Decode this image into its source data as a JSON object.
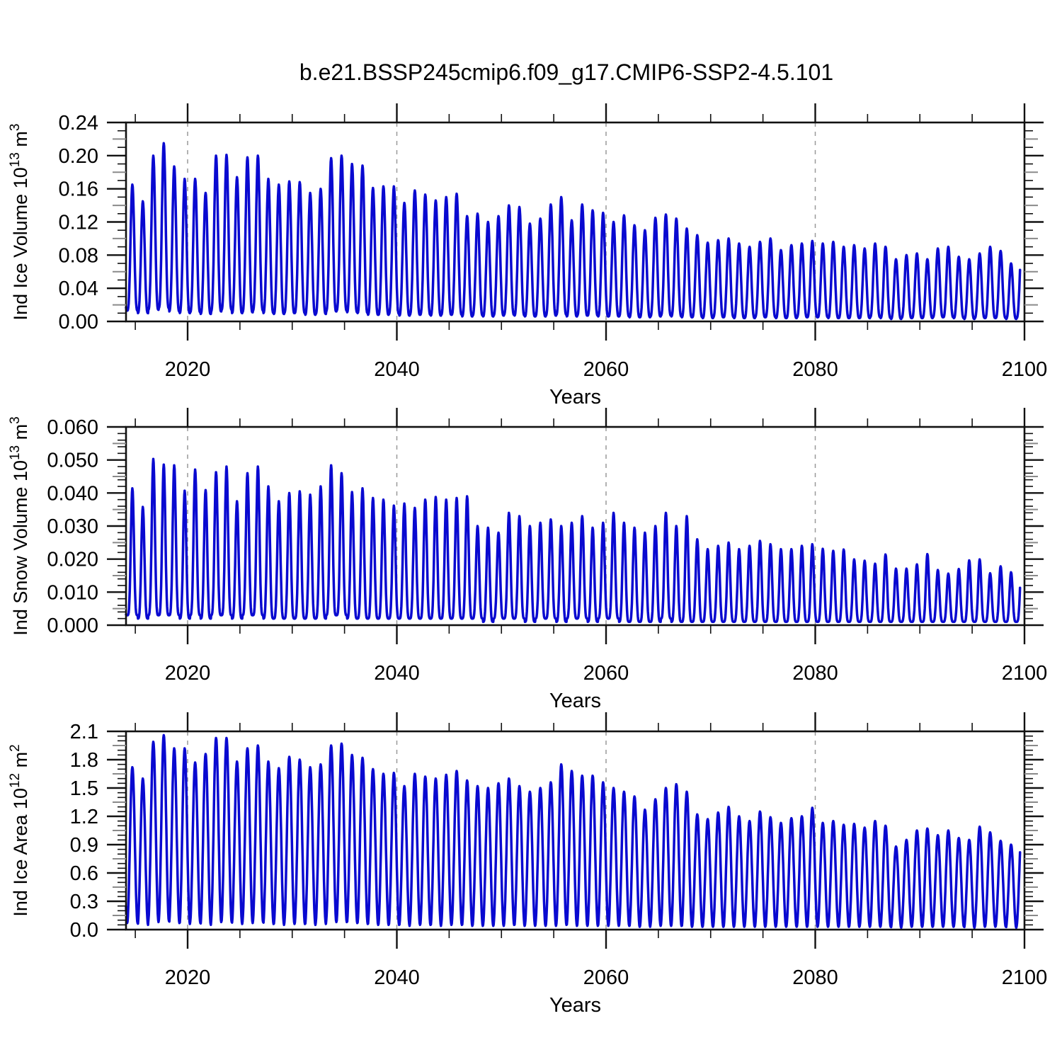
{
  "title": "b.e21.BSSP245cmip6.f09_g17.CMIP6-SSP2-4.5.101",
  "style": {
    "line_color": "#0909D0",
    "axis_color": "#111111",
    "grid_color": "#999999",
    "mid_tick_color": "#8A8A8A"
  },
  "x_axis": {
    "label": "Years",
    "ticks": [
      2020,
      2040,
      2060,
      2080,
      2100
    ],
    "minor_step": 5,
    "gridlines": [
      2020,
      2040,
      2060,
      2080
    ],
    "axis_start_year": 2014.11,
    "axis_end_year": 2100,
    "data_start_year": 2014.11,
    "data_end_year": 2099.58
  },
  "seasonal_model": {
    "peak_phase_of_year": 0.72,
    "samples_per_year": 28
  },
  "chart_data": [
    {
      "type": "line",
      "name": "ice-volume",
      "xlabel": "Years",
      "ylabel": "Ind Ice Volume 10^13 m^3",
      "ylabel_segments": [
        {
          "t": "Ind Ice Volume 10",
          "sup": false
        },
        {
          "t": "13",
          "sup": true
        },
        {
          "t": " m",
          "sup": false
        },
        {
          "t": "3",
          "sup": true
        }
      ],
      "ylim": [
        0,
        0.24
      ],
      "ytick_major_step": 0.04,
      "ytick_mid_step": 0.02,
      "ytick_minor_step": 0.01,
      "ytick_decimals": 2,
      "peak_sharpness": 1.7,
      "year_start": 2014,
      "annual_max": [
        0.165,
        0.145,
        0.2,
        0.215,
        0.187,
        0.172,
        0.172,
        0.155,
        0.2,
        0.201,
        0.174,
        0.198,
        0.2,
        0.172,
        0.165,
        0.169,
        0.168,
        0.155,
        0.16,
        0.197,
        0.2,
        0.19,
        0.188,
        0.161,
        0.163,
        0.163,
        0.143,
        0.158,
        0.153,
        0.146,
        0.15,
        0.154,
        0.127,
        0.13,
        0.12,
        0.127,
        0.14,
        0.138,
        0.118,
        0.124,
        0.141,
        0.15,
        0.122,
        0.141,
        0.134,
        0.131,
        0.12,
        0.128,
        0.116,
        0.11,
        0.125,
        0.129,
        0.124,
        0.112,
        0.104,
        0.095,
        0.098,
        0.1,
        0.094,
        0.09,
        0.096,
        0.1,
        0.086,
        0.092,
        0.094,
        0.097,
        0.094,
        0.096,
        0.09,
        0.092,
        0.088,
        0.094,
        0.09,
        0.075,
        0.08,
        0.082,
        0.075,
        0.088,
        0.09,
        0.078,
        0.075,
        0.082,
        0.09,
        0.085,
        0.07,
        0.088
      ],
      "annual_min": [
        0.013,
        0.01,
        0.014,
        0.016,
        0.012,
        0.01,
        0.011,
        0.009,
        0.012,
        0.014,
        0.01,
        0.011,
        0.013,
        0.01,
        0.009,
        0.01,
        0.01,
        0.008,
        0.009,
        0.012,
        0.013,
        0.011,
        0.01,
        0.008,
        0.008,
        0.009,
        0.007,
        0.008,
        0.008,
        0.007,
        0.008,
        0.008,
        0.006,
        0.007,
        0.006,
        0.007,
        0.008,
        0.007,
        0.006,
        0.006,
        0.007,
        0.008,
        0.006,
        0.007,
        0.007,
        0.006,
        0.006,
        0.006,
        0.005,
        0.005,
        0.006,
        0.007,
        0.006,
        0.005,
        0.005,
        0.004,
        0.005,
        0.005,
        0.004,
        0.004,
        0.005,
        0.005,
        0.004,
        0.004,
        0.005,
        0.005,
        0.005,
        0.004,
        0.004,
        0.004,
        0.004,
        0.005,
        0.004,
        0.003,
        0.004,
        0.004,
        0.004,
        0.005,
        0.005,
        0.004,
        0.003,
        0.004,
        0.004,
        0.004,
        0.003,
        0.004
      ]
    },
    {
      "type": "line",
      "name": "snow-volume",
      "xlabel": "Years",
      "ylabel": "Ind Snow Volume 10^13 m^3",
      "ylabel_segments": [
        {
          "t": "Ind Snow Volume 10",
          "sup": false
        },
        {
          "t": "13",
          "sup": true
        },
        {
          "t": " m",
          "sup": false
        },
        {
          "t": "3",
          "sup": true
        }
      ],
      "ylim": [
        0,
        0.06
      ],
      "ytick_major_step": 0.01,
      "ytick_mid_step": 0.005,
      "ytick_minor_step": 0.002,
      "ytick_decimals": 3,
      "peak_sharpness": 2.3,
      "year_start": 2014,
      "annual_max": [
        0.0414,
        0.0358,
        0.0503,
        0.0486,
        0.0484,
        0.0407,
        0.0471,
        0.0409,
        0.0463,
        0.048,
        0.0375,
        0.046,
        0.048,
        0.042,
        0.0375,
        0.04,
        0.0405,
        0.0395,
        0.042,
        0.0484,
        0.046,
        0.0403,
        0.0414,
        0.0385,
        0.038,
        0.0362,
        0.0368,
        0.0355,
        0.038,
        0.0388,
        0.038,
        0.0385,
        0.039,
        0.03,
        0.0295,
        0.028,
        0.034,
        0.033,
        0.03,
        0.031,
        0.032,
        0.03,
        0.031,
        0.033,
        0.0295,
        0.031,
        0.034,
        0.031,
        0.0295,
        0.028,
        0.03,
        0.034,
        0.03,
        0.033,
        0.026,
        0.023,
        0.024,
        0.025,
        0.023,
        0.024,
        0.0255,
        0.0245,
        0.023,
        0.023,
        0.024,
        0.0245,
        0.0231,
        0.0225,
        0.0229,
        0.0199,
        0.0195,
        0.0186,
        0.0214,
        0.0171,
        0.0171,
        0.0184,
        0.0215,
        0.0167,
        0.0156,
        0.017,
        0.0196,
        0.0199,
        0.0157,
        0.0178,
        0.016,
        0.018
      ],
      "annual_min": [
        0.003,
        0.002,
        0.003,
        0.003,
        0.003,
        0.002,
        0.003,
        0.002,
        0.003,
        0.003,
        0.002,
        0.003,
        0.003,
        0.002,
        0.002,
        0.002,
        0.002,
        0.002,
        0.002,
        0.003,
        0.003,
        0.002,
        0.002,
        0.002,
        0.002,
        0.002,
        0.002,
        0.002,
        0.002,
        0.002,
        0.002,
        0.002,
        0.002,
        0.002,
        0.001,
        0.002,
        0.002,
        0.002,
        0.001,
        0.002,
        0.002,
        0.001,
        0.002,
        0.002,
        0.001,
        0.002,
        0.002,
        0.001,
        0.001,
        0.001,
        0.001,
        0.002,
        0.001,
        0.001,
        0.001,
        0.001,
        0.001,
        0.001,
        0.001,
        0.001,
        0.001,
        0.001,
        0.001,
        0.001,
        0.001,
        0.001,
        0.001,
        0.001,
        0.001,
        0.001,
        0.001,
        0.001,
        0.001,
        0.001,
        0.001,
        0.001,
        0.001,
        0.001,
        0.001,
        0.001,
        0.001,
        0.001,
        0.001,
        0.001,
        0.001,
        0.001
      ]
    },
    {
      "type": "line",
      "name": "ice-area",
      "xlabel": "Years",
      "ylabel": "Ind Ice Area 10^12 m^2",
      "ylabel_segments": [
        {
          "t": "Ind Ice Area 10",
          "sup": false
        },
        {
          "t": "12",
          "sup": true
        },
        {
          "t": " m",
          "sup": false
        },
        {
          "t": "2",
          "sup": true
        }
      ],
      "ylim": [
        0,
        2.1
      ],
      "ytick_major_step": 0.3,
      "ytick_mid_step": 0.15,
      "ytick_minor_step": 0.05,
      "ytick_decimals": 1,
      "peak_sharpness": 1.05,
      "year_start": 2014,
      "annual_max": [
        1.72,
        1.6,
        1.99,
        2.06,
        1.92,
        1.92,
        1.77,
        1.86,
        2.03,
        2.03,
        1.78,
        1.92,
        1.95,
        1.78,
        1.71,
        1.83,
        1.8,
        1.72,
        1.75,
        1.95,
        1.97,
        1.85,
        1.82,
        1.7,
        1.65,
        1.66,
        1.52,
        1.65,
        1.62,
        1.6,
        1.64,
        1.68,
        1.58,
        1.52,
        1.5,
        1.55,
        1.6,
        1.52,
        1.46,
        1.5,
        1.56,
        1.75,
        1.68,
        1.63,
        1.63,
        1.56,
        1.5,
        1.46,
        1.41,
        1.27,
        1.38,
        1.5,
        1.54,
        1.46,
        1.22,
        1.17,
        1.24,
        1.3,
        1.2,
        1.15,
        1.25,
        1.19,
        1.13,
        1.18,
        1.2,
        1.29,
        1.13,
        1.15,
        1.11,
        1.12,
        1.08,
        1.15,
        1.1,
        0.88,
        0.95,
        1.05,
        1.07,
        1.0,
        1.05,
        0.97,
        0.95,
        1.09,
        1.03,
        0.94,
        0.9,
        1.02
      ],
      "annual_min": [
        0.07,
        0.05,
        0.08,
        0.09,
        0.07,
        0.06,
        0.07,
        0.05,
        0.08,
        0.08,
        0.06,
        0.07,
        0.08,
        0.06,
        0.05,
        0.06,
        0.06,
        0.05,
        0.06,
        0.08,
        0.08,
        0.07,
        0.06,
        0.05,
        0.05,
        0.05,
        0.04,
        0.05,
        0.05,
        0.04,
        0.05,
        0.05,
        0.04,
        0.04,
        0.04,
        0.04,
        0.05,
        0.04,
        0.04,
        0.04,
        0.04,
        0.05,
        0.04,
        0.04,
        0.04,
        0.04,
        0.04,
        0.04,
        0.03,
        0.03,
        0.04,
        0.04,
        0.04,
        0.03,
        0.03,
        0.03,
        0.03,
        0.03,
        0.03,
        0.03,
        0.03,
        0.03,
        0.03,
        0.03,
        0.03,
        0.03,
        0.03,
        0.03,
        0.03,
        0.03,
        0.03,
        0.03,
        0.03,
        0.02,
        0.03,
        0.03,
        0.03,
        0.03,
        0.03,
        0.03,
        0.02,
        0.03,
        0.03,
        0.03,
        0.02,
        0.03
      ]
    }
  ]
}
